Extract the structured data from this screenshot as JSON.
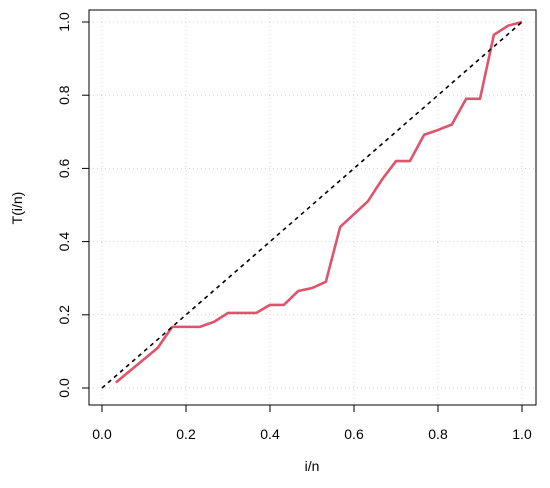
{
  "chart_data": {
    "type": "line",
    "title": "",
    "xlabel": "i/n",
    "ylabel": "T(i/n)",
    "xlim": [
      0,
      1
    ],
    "ylim": [
      0,
      1
    ],
    "xticks": [
      "0.0",
      "0.2",
      "0.4",
      "0.6",
      "0.8",
      "1.0"
    ],
    "yticks": [
      "0.0",
      "0.2",
      "0.4",
      "0.6",
      "0.8",
      "1.0"
    ],
    "grid": true,
    "series": [
      {
        "color": "#DF536B",
        "style": "solid",
        "x": [
          0.033,
          0.133,
          0.167,
          0.233,
          0.267,
          0.3,
          0.367,
          0.4,
          0.433,
          0.467,
          0.5,
          0.533,
          0.567,
          0.6,
          0.633,
          0.667,
          0.7,
          0.733,
          0.767,
          0.8,
          0.833,
          0.867,
          0.9,
          0.933,
          0.967,
          1.0
        ],
        "y": [
          0.015,
          0.11,
          0.167,
          0.167,
          0.181,
          0.205,
          0.205,
          0.227,
          0.227,
          0.265,
          0.273,
          0.29,
          0.44,
          0.475,
          0.51,
          0.57,
          0.62,
          0.62,
          0.692,
          0.705,
          0.72,
          0.79,
          0.79,
          0.965,
          0.99,
          1.0
        ]
      },
      {
        "color": "#000000",
        "style": "dashed",
        "x": [
          0,
          1
        ],
        "y": [
          0,
          1
        ]
      }
    ]
  }
}
